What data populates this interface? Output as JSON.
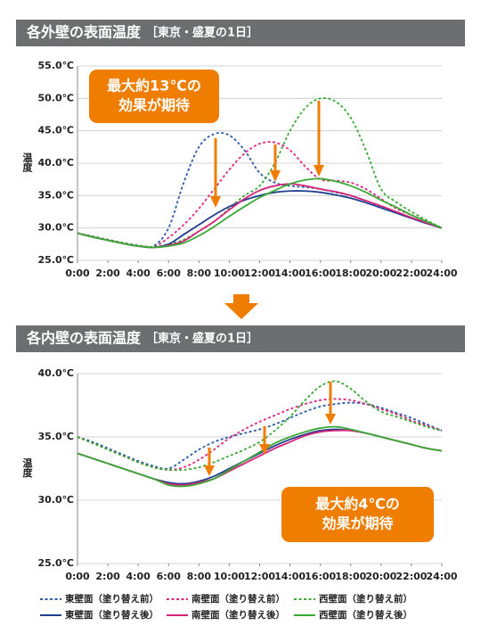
{
  "chart_data": [
    {
      "type": "line",
      "title": "各外壁の表面温度",
      "subtitle": "［東京・盛夏の1日］",
      "y_label": "温度",
      "x": [
        0,
        1,
        2,
        3,
        4,
        5,
        6,
        7,
        8,
        9,
        10,
        11,
        12,
        13,
        14,
        15,
        16,
        17,
        18,
        19,
        20,
        21,
        22,
        23,
        24
      ],
      "xlim": [
        0,
        24
      ],
      "xticks": [
        {
          "value": 0,
          "label": "0:00"
        },
        {
          "value": 2,
          "label": "2:00"
        },
        {
          "value": 4,
          "label": "4:00"
        },
        {
          "value": 6,
          "label": "6:00"
        },
        {
          "value": 8,
          "label": "8:00"
        },
        {
          "value": 10,
          "label": "10:00"
        },
        {
          "value": 12,
          "label": "12:00"
        },
        {
          "value": 14,
          "label": "14:00"
        },
        {
          "value": 16,
          "label": "16:00"
        },
        {
          "value": 18,
          "label": "18:00"
        },
        {
          "value": 20,
          "label": "20:00"
        },
        {
          "value": 22,
          "label": "22:00"
        },
        {
          "value": 24,
          "label": "24:00"
        }
      ],
      "ylim": [
        25,
        55
      ],
      "yticks": [
        {
          "value": 25,
          "label": "25.0℃"
        },
        {
          "value": 30,
          "label": "30.0℃"
        },
        {
          "value": 35,
          "label": "35.0℃"
        },
        {
          "value": 40,
          "label": "40.0℃"
        },
        {
          "value": 45,
          "label": "45.0℃"
        },
        {
          "value": 50,
          "label": "50.0℃"
        },
        {
          "value": 55,
          "label": "55.0℃"
        }
      ],
      "grid": true,
      "annotation": [
        "最大約13℃の",
        "効果が期待"
      ],
      "series": [
        {
          "color": "#2a5caa",
          "dashed": true,
          "values": [
            29.2,
            28.7,
            28.2,
            27.7,
            27.3,
            27.2,
            30,
            37,
            42.5,
            44.5,
            44.3,
            42,
            38.5,
            37,
            36.5,
            36.3,
            36,
            35.5,
            35,
            34.2,
            33.3,
            32.4,
            31.5,
            30.7,
            30
          ]
        },
        {
          "color": "#e0287f",
          "dashed": true,
          "values": [
            29.2,
            28.7,
            28.2,
            27.7,
            27.3,
            27.1,
            28.5,
            30.5,
            33,
            36,
            39,
            41.5,
            43,
            43.2,
            42,
            39.5,
            37.5,
            37.3,
            37,
            36,
            34.5,
            33,
            32,
            31,
            30
          ]
        },
        {
          "color": "#3aaa35",
          "dashed": true,
          "values": [
            29.2,
            28.7,
            28.2,
            27.7,
            27.3,
            27.1,
            27.5,
            28.2,
            29.5,
            31,
            33,
            35,
            36.5,
            40,
            45,
            48.5,
            50,
            49.5,
            47,
            42,
            36,
            34,
            32.5,
            31.2,
            30
          ]
        },
        {
          "color": "#1f3f8f",
          "dashed": false,
          "values": [
            29.2,
            28.6,
            28.1,
            27.6,
            27.2,
            27,
            27.5,
            29,
            30.5,
            32,
            33.3,
            34.3,
            35,
            35.5,
            35.7,
            35.7,
            35.5,
            35.1,
            34.6,
            33.9,
            33.1,
            32.3,
            31.5,
            30.7,
            30
          ]
        },
        {
          "color": "#d6247a",
          "dashed": false,
          "values": [
            29.2,
            28.6,
            28.1,
            27.6,
            27.2,
            27,
            27.3,
            28,
            29.5,
            31,
            32.8,
            34.5,
            35.8,
            36.5,
            36.8,
            36.5,
            36,
            35.6,
            35,
            34.2,
            33.4,
            32.5,
            31.6,
            30.8,
            30
          ]
        },
        {
          "color": "#3aaa35",
          "dashed": false,
          "values": [
            29.2,
            28.6,
            28.1,
            27.6,
            27.2,
            27,
            27.2,
            27.7,
            28.8,
            30.2,
            31.8,
            33.3,
            34.7,
            35.8,
            36.8,
            37.4,
            37.6,
            37.2,
            36.5,
            35.5,
            34.3,
            33.2,
            32,
            31,
            30
          ]
        }
      ]
    },
    {
      "type": "line",
      "title": "各内壁の表面温度",
      "subtitle": "［東京・盛夏の1日］",
      "y_label": "温度",
      "x": [
        0,
        1,
        2,
        3,
        4,
        5,
        6,
        7,
        8,
        9,
        10,
        11,
        12,
        13,
        14,
        15,
        16,
        17,
        18,
        19,
        20,
        21,
        22,
        23,
        24
      ],
      "xlim": [
        0,
        24
      ],
      "xticks": [
        {
          "value": 0,
          "label": "0:00"
        },
        {
          "value": 2,
          "label": "2:00"
        },
        {
          "value": 4,
          "label": "4:00"
        },
        {
          "value": 6,
          "label": "6:00"
        },
        {
          "value": 8,
          "label": "8:00"
        },
        {
          "value": 10,
          "label": "10:00"
        },
        {
          "value": 12,
          "label": "12:00"
        },
        {
          "value": 14,
          "label": "14:00"
        },
        {
          "value": 16,
          "label": "16:00"
        },
        {
          "value": 18,
          "label": "18:00"
        },
        {
          "value": 20,
          "label": "20:00"
        },
        {
          "value": 22,
          "label": "22:00"
        },
        {
          "value": 24,
          "label": "24:00"
        }
      ],
      "ylim": [
        25,
        40
      ],
      "yticks": [
        {
          "value": 25,
          "label": "25.0℃"
        },
        {
          "value": 30,
          "label": "30.0℃"
        },
        {
          "value": 35,
          "label": "35.0℃"
        },
        {
          "value": 40,
          "label": "40.0℃"
        }
      ],
      "grid": true,
      "annotation": [
        "最大約4℃の",
        "効果が期待"
      ],
      "series": [
        {
          "name": "東壁面（塗り替え前）",
          "color": "#2a5caa",
          "dashed": true,
          "values": [
            35,
            34.6,
            34.1,
            33.6,
            33.1,
            32.7,
            32.5,
            33.2,
            34,
            34.6,
            35,
            35.3,
            35.6,
            36,
            36.5,
            37,
            37.4,
            37.6,
            37.7,
            37.6,
            37.3,
            36.9,
            36.5,
            36,
            35.5
          ]
        },
        {
          "name": "南壁面（塗り替え前）",
          "color": "#e0287f",
          "dashed": true,
          "values": [
            35,
            34.5,
            34,
            33.5,
            33,
            32.6,
            32.4,
            32.6,
            33.2,
            34,
            34.9,
            35.6,
            36.2,
            36.7,
            37.2,
            37.6,
            37.9,
            38,
            37.9,
            37.6,
            37.2,
            36.8,
            36.3,
            35.9,
            35.5
          ]
        },
        {
          "name": "西壁面（塗り替え前）",
          "color": "#3aaa35",
          "dashed": true,
          "values": [
            35,
            34.5,
            34,
            33.5,
            33,
            32.6,
            32.4,
            32.4,
            32.6,
            33,
            33.5,
            34,
            34.6,
            35.5,
            36.6,
            37.9,
            39,
            39.4,
            38.8,
            37.8,
            37,
            36.6,
            36.2,
            35.8,
            35.5
          ]
        },
        {
          "name": "東壁面（塗り替え後）",
          "color": "#1f3f8f",
          "dashed": false,
          "values": [
            33.7,
            33.3,
            32.9,
            32.5,
            32.1,
            31.7,
            31.4,
            31.3,
            31.5,
            31.9,
            32.5,
            33.1,
            33.7,
            34.3,
            34.8,
            35.2,
            35.5,
            35.6,
            35.5,
            35.3,
            35,
            34.7,
            34.4,
            34.1,
            33.9
          ]
        },
        {
          "name": "南壁面（塗り替え後）",
          "color": "#d6247a",
          "dashed": false,
          "values": [
            33.7,
            33.3,
            32.9,
            32.5,
            32.1,
            31.7,
            31.3,
            31.2,
            31.4,
            31.7,
            32.3,
            32.9,
            33.5,
            34.1,
            34.6,
            35.1,
            35.4,
            35.5,
            35.5,
            35.3,
            35,
            34.7,
            34.4,
            34.1,
            33.9
          ]
        },
        {
          "name": "西壁面（塗り替え後）",
          "color": "#3aaa35",
          "dashed": false,
          "values": [
            33.7,
            33.3,
            32.9,
            32.5,
            32.1,
            31.7,
            31.2,
            31.1,
            31.3,
            31.7,
            32.4,
            33.1,
            33.8,
            34.5,
            35,
            35.4,
            35.7,
            35.8,
            35.6,
            35.3,
            35,
            34.7,
            34.4,
            34.1,
            33.9
          ]
        }
      ]
    }
  ]
}
